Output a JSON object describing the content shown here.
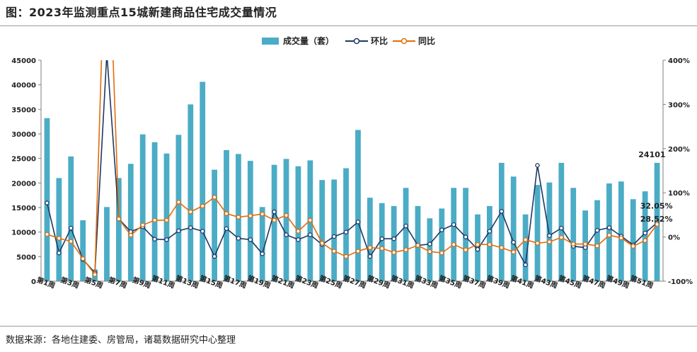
{
  "page": {
    "title": "图：2023年监测重点15城新建商品住宅成交量情况",
    "source": "数据来源：各地住建委、房管局，诸葛数据研究中心整理"
  },
  "colors": {
    "bar": "#4bacc6",
    "mom": "#1f3864",
    "yoy": "#e36c09",
    "axis": "#7f7f7f",
    "grid": "#d9d9d9"
  },
  "chart_data": {
    "type": "bar",
    "legend": [
      "成交量（套）",
      "环比",
      "同比"
    ],
    "legend_position": "top-center",
    "left_axis": {
      "min": 0,
      "max": 45000,
      "ticks": [
        "0",
        "5000",
        "10000",
        "15000",
        "20000",
        "25000",
        "30000",
        "35000",
        "40000",
        "45000"
      ]
    },
    "right_axis": {
      "min": -100,
      "max": 400,
      "ticks": [
        "-100%",
        "0%",
        "100%",
        "200%",
        "300%",
        "400%"
      ]
    },
    "x_ticks": [
      "第1周",
      "第3周",
      "第5周",
      "第7周",
      "第9周",
      "第11周",
      "第13周",
      "第15周",
      "第17周",
      "第19周",
      "第21周",
      "第23周",
      "第25周",
      "第27周",
      "第29周",
      "第31周",
      "第33周",
      "第35周",
      "第37周",
      "第39周",
      "第41周",
      "第43周",
      "第45周",
      "第47周",
      "第49周",
      "第51周"
    ],
    "weeks": [
      1,
      2,
      3,
      4,
      5,
      6,
      7,
      8,
      9,
      10,
      11,
      12,
      13,
      14,
      15,
      16,
      17,
      18,
      19,
      20,
      21,
      22,
      23,
      24,
      25,
      26,
      27,
      28,
      29,
      30,
      31,
      32,
      33,
      34,
      35,
      36,
      37,
      38,
      39,
      40,
      41,
      42,
      43,
      44,
      45,
      46,
      47,
      48,
      49,
      50,
      51,
      52
    ],
    "series": [
      {
        "name": "成交量（套）",
        "kind": "bar",
        "values": [
          33200,
          21000,
          25400,
          12400,
          2400,
          15100,
          21000,
          23900,
          29900,
          28300,
          26000,
          29800,
          36000,
          40600,
          22700,
          26700,
          25900,
          24500,
          15100,
          23700,
          24900,
          23400,
          24600,
          20600,
          20700,
          23000,
          30800,
          17000,
          15900,
          15300,
          19000,
          15300,
          12800,
          14800,
          19000,
          19000,
          13600,
          15300,
          24100,
          21300,
          13600,
          19600,
          20100,
          24100,
          19000,
          14400,
          16500,
          19900,
          20300,
          16700,
          18300,
          24101
        ]
      },
      {
        "name": "环比",
        "kind": "line",
        "values": [
          77,
          -36,
          20,
          -51,
          -81,
          415,
          41,
          12,
          23,
          -5,
          -6,
          14,
          21,
          13,
          -44,
          19,
          -3,
          -6,
          -38,
          57,
          5,
          -6,
          5,
          -17,
          1,
          11,
          34,
          -44,
          -4,
          -4,
          25,
          -19,
          -16,
          16,
          28,
          0,
          -28,
          13,
          58,
          -12,
          -63,
          162,
          3,
          20,
          -21,
          -24,
          15,
          21,
          2,
          -18,
          9,
          32
        ]
      },
      {
        "name": "同比",
        "kind": "line",
        "values": [
          6,
          -3,
          -10,
          -49,
          -85,
          800,
          41,
          4,
          27,
          38,
          38,
          79,
          57,
          70,
          90,
          53,
          45,
          48,
          52,
          38,
          49,
          13,
          38,
          -14,
          -32,
          -44,
          -32,
          -24,
          -26,
          -35,
          -29,
          -19,
          -33,
          -36,
          -17,
          -29,
          -17,
          -17,
          -24,
          -34,
          -6,
          -14,
          -11,
          -1,
          -16,
          -16,
          -20,
          4,
          -2,
          -21,
          -8,
          28.52
        ],
        "clipped_note": "week 6 exceeds axis maximum"
      }
    ],
    "annotations": {
      "last_volume": "24101",
      "last_mom": "32.05%",
      "last_yoy": "28.52%"
    }
  }
}
